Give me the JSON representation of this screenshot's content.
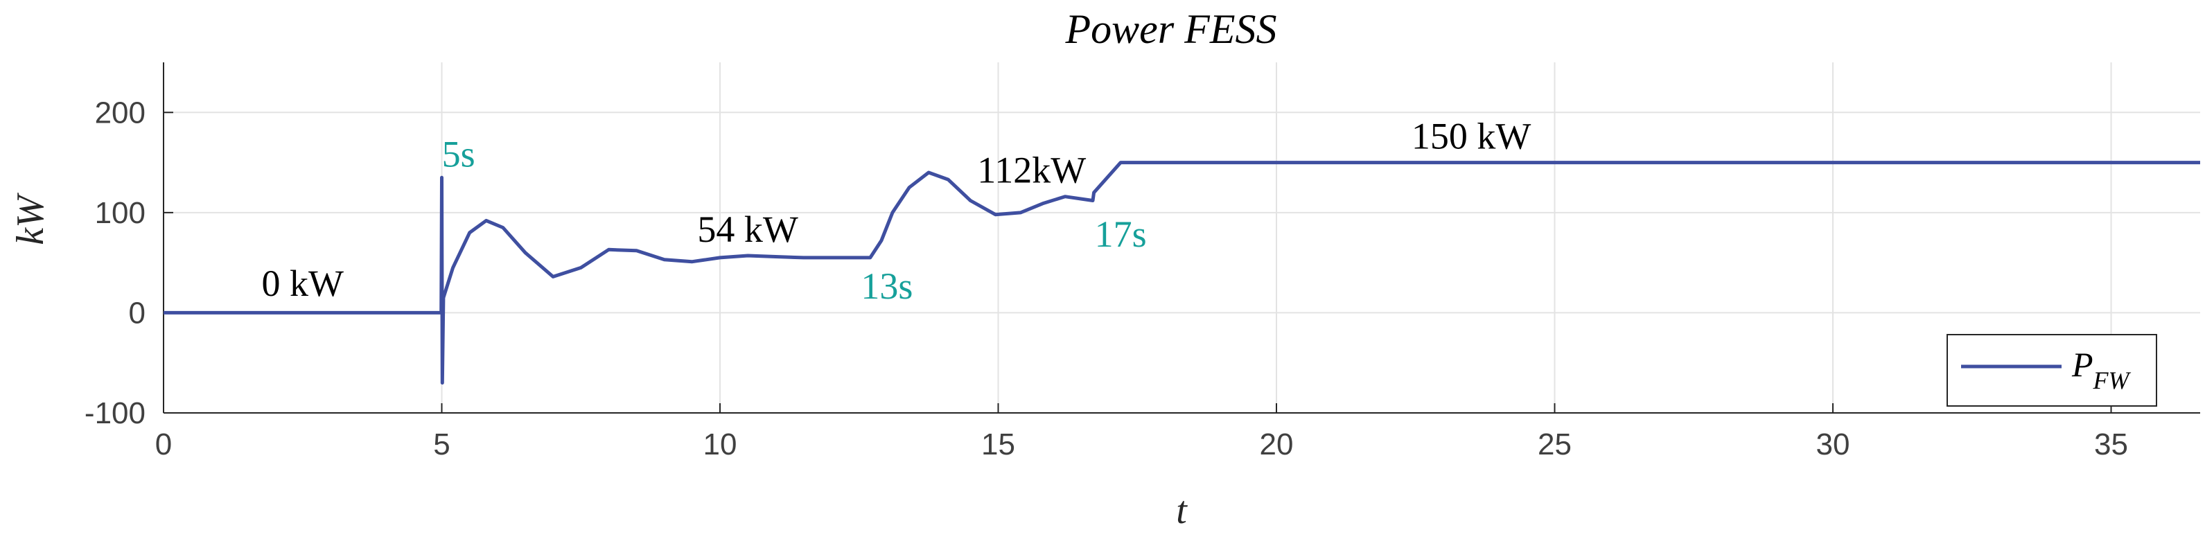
{
  "chart_data": {
    "type": "line",
    "title": "Power FESS",
    "xlabel": "t",
    "ylabel": "kW",
    "xlim": [
      0,
      36.6
    ],
    "ylim": [
      -100,
      250
    ],
    "xticks": [
      0,
      5,
      10,
      15,
      20,
      25,
      30,
      35
    ],
    "yticks": [
      -100,
      0,
      100,
      200
    ],
    "grid": true,
    "legend_placement": "bottom-right",
    "legend": {
      "name": "P",
      "subscript": "FW"
    },
    "series": [
      {
        "name": "P_FW",
        "color": "#3f4fa0",
        "x": [
          0,
          4.99,
          5.0,
          5.01,
          5.03,
          5.2,
          5.5,
          5.8,
          6.1,
          6.5,
          7.0,
          7.5,
          8.0,
          8.5,
          9.0,
          9.5,
          10.0,
          10.5,
          11.0,
          11.5,
          12.0,
          12.7,
          12.9,
          13.1,
          13.4,
          13.75,
          14.1,
          14.5,
          14.95,
          15.4,
          15.8,
          16.2,
          16.7,
          16.72,
          17.2,
          20,
          24.8,
          25,
          30,
          36.6
        ],
        "y": [
          0,
          0,
          135,
          -70,
          15,
          45,
          80,
          92,
          85,
          60,
          36,
          45,
          63,
          62,
          53,
          51,
          55,
          57,
          56,
          55,
          55,
          55,
          72,
          100,
          125,
          140,
          133,
          112,
          98,
          100,
          109,
          116,
          112,
          120,
          150,
          150,
          150,
          150,
          150,
          150
        ]
      }
    ],
    "annotations": [
      {
        "text": "0 kW",
        "x": 2.5,
        "y": 17,
        "color": "#000000"
      },
      {
        "text": "5s",
        "x": 5.3,
        "y": 146,
        "color": "#16a09a"
      },
      {
        "text": "54 kW",
        "x": 10.5,
        "y": 71,
        "color": "#000000"
      },
      {
        "text": "13s",
        "x": 13.0,
        "y": 14,
        "color": "#16a09a"
      },
      {
        "text": "112kW",
        "x": 15.6,
        "y": 130,
        "color": "#000000"
      },
      {
        "text": "17s",
        "x": 17.2,
        "y": 66,
        "color": "#16a09a"
      },
      {
        "text": "150 kW",
        "x": 23.5,
        "y": 164,
        "color": "#000000"
      }
    ]
  }
}
